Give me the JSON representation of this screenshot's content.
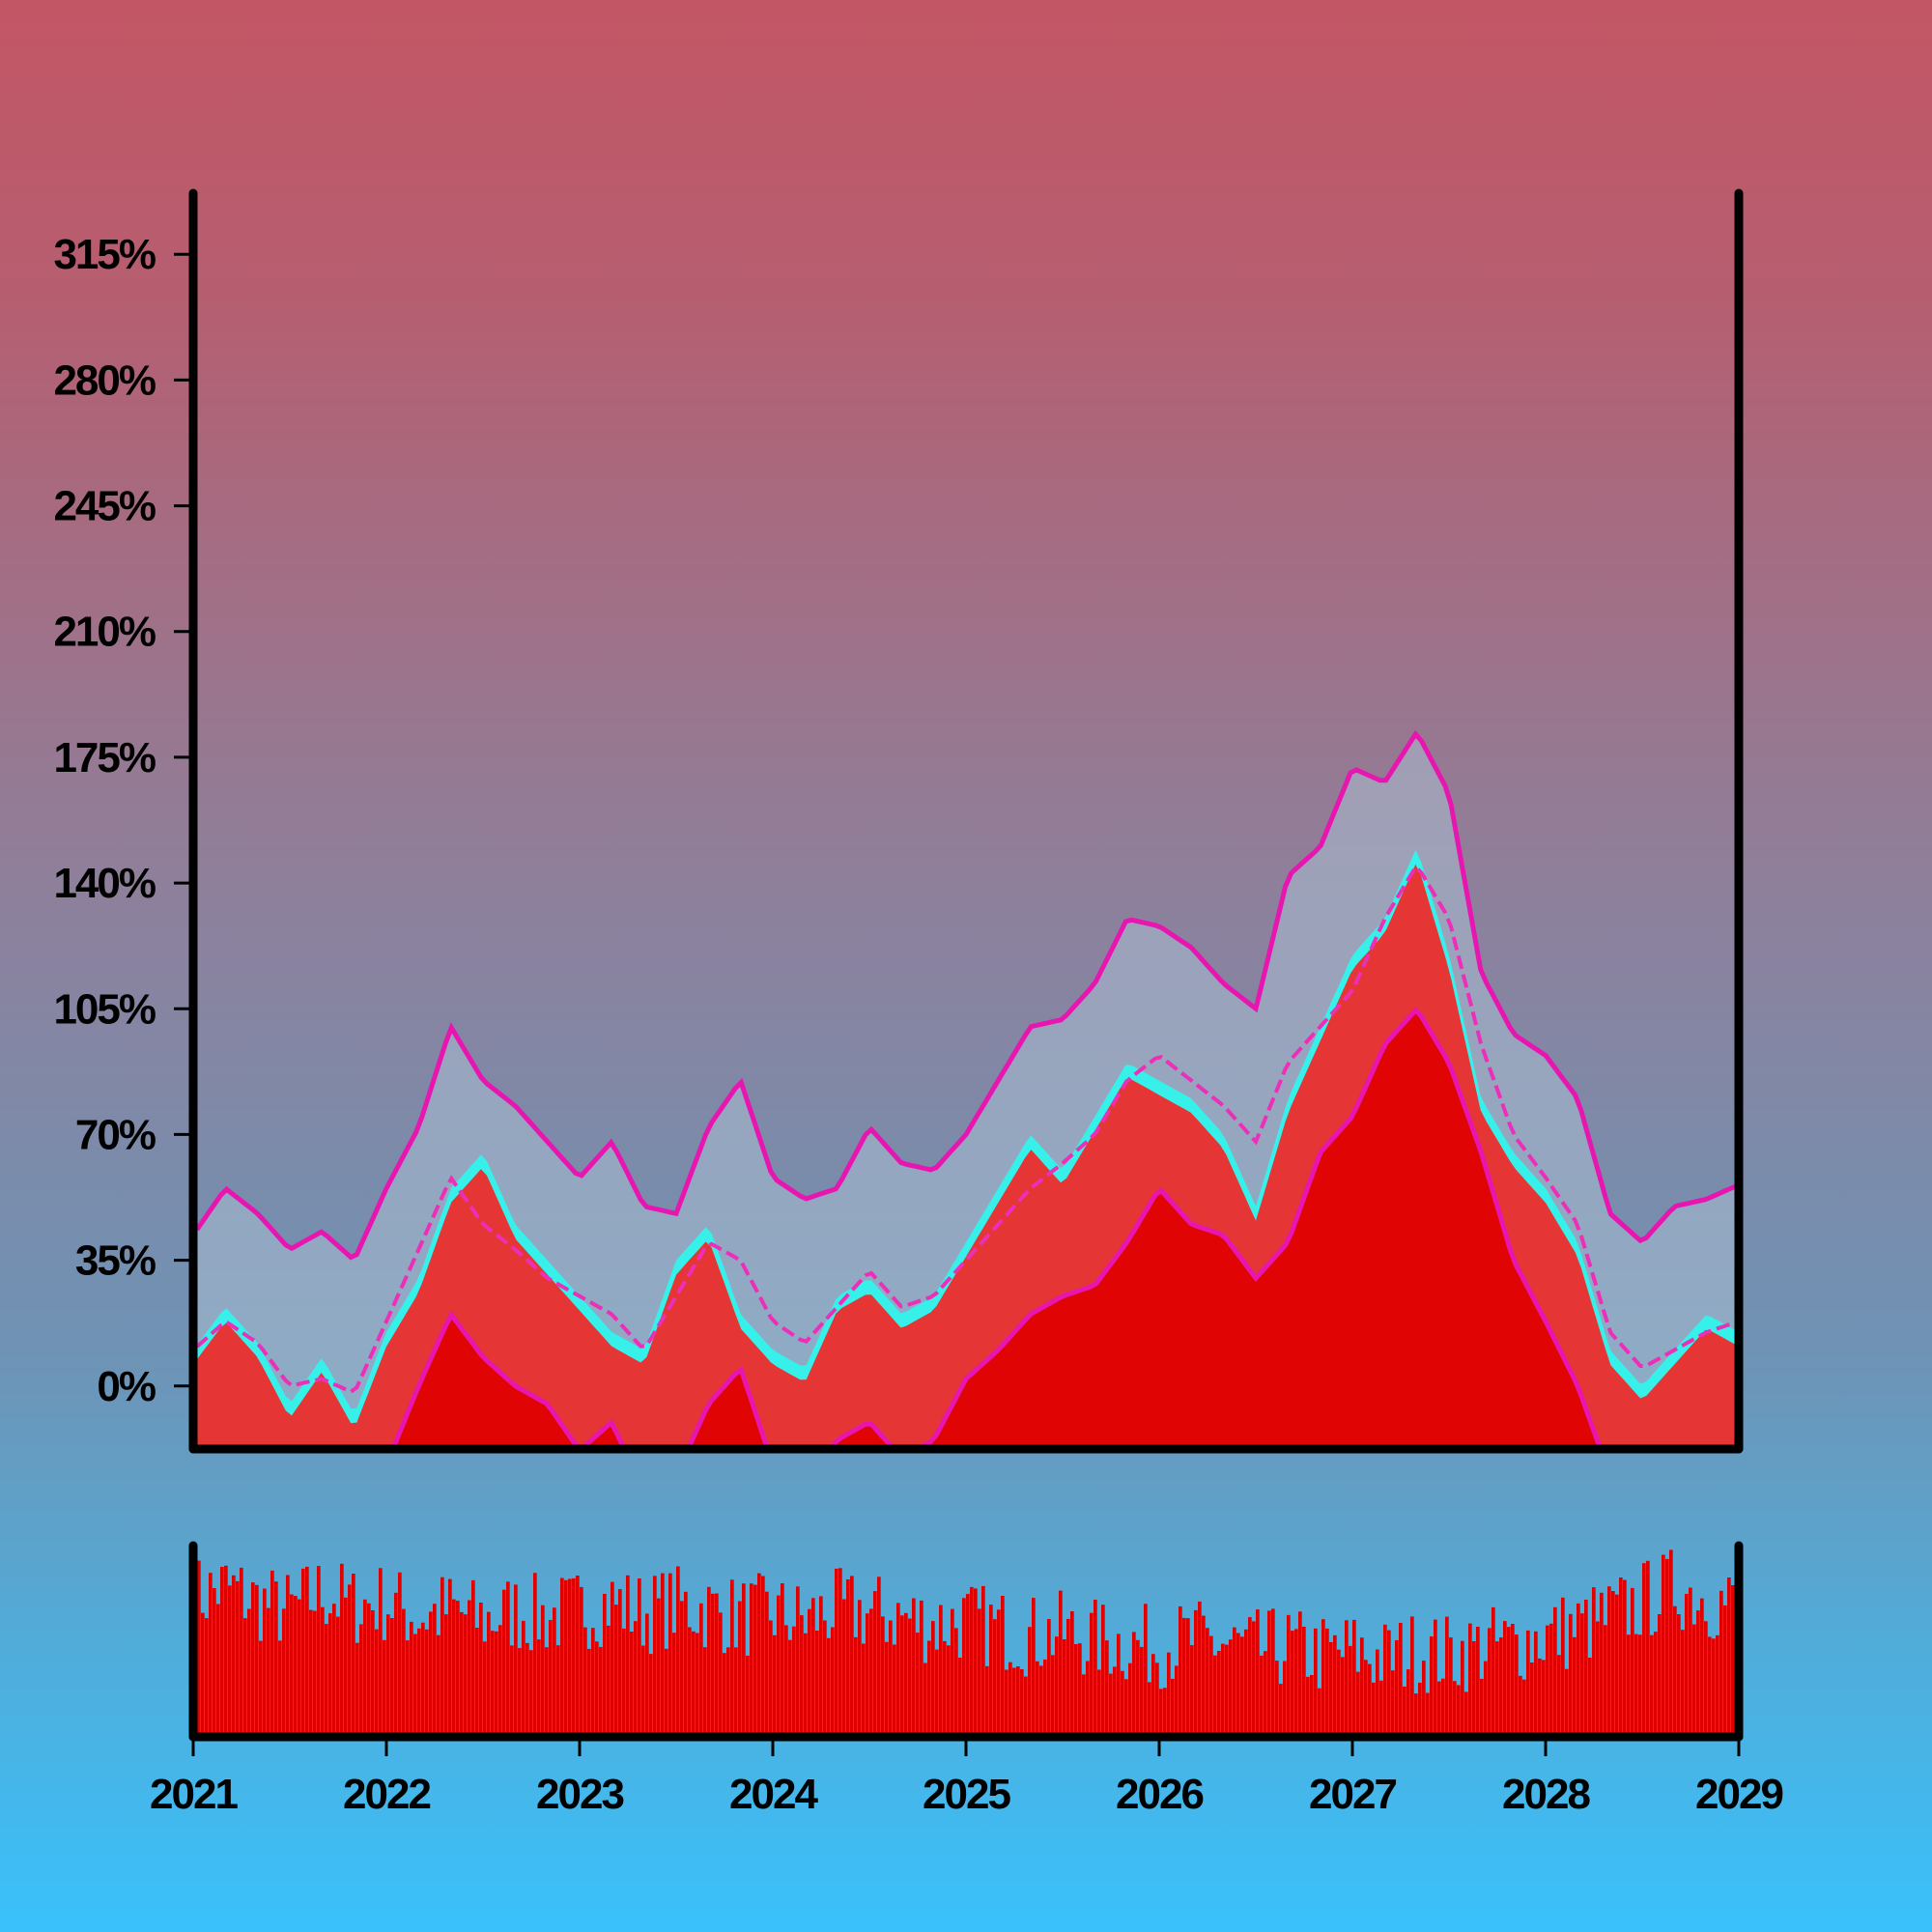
{
  "chart_data": {
    "type": "line",
    "title": "",
    "xlabel": "",
    "ylabel": "",
    "x_range": [
      "2021-01-01",
      "2029-01-01"
    ],
    "x_ticks": [
      "2021",
      "2022",
      "2023",
      "2024",
      "2025",
      "2026",
      "2027",
      "2028",
      "2029"
    ],
    "ylim": [
      -17,
      332
    ],
    "y_ticks": [
      0,
      35,
      70,
      105,
      140,
      175,
      210,
      245,
      280,
      315
    ],
    "y_tick_labels": [
      "0%",
      "35%",
      "70%",
      "105%",
      "140%",
      "175%",
      "210%",
      "245%",
      "280%",
      "315%"
    ],
    "legend": "none",
    "grid": false,
    "x": [
      "2021-01",
      "2021-03",
      "2021-05",
      "2021-07",
      "2021-09",
      "2021-11",
      "2022-01",
      "2022-03",
      "2022-05",
      "2022-07",
      "2022-09",
      "2022-11",
      "2023-01",
      "2023-03",
      "2023-05",
      "2023-07",
      "2023-09",
      "2023-11",
      "2024-01",
      "2024-03",
      "2024-05",
      "2024-07",
      "2024-09",
      "2024-11",
      "2025-01",
      "2025-03",
      "2025-05",
      "2025-07",
      "2025-09",
      "2025-11",
      "2026-01",
      "2026-03",
      "2026-05",
      "2026-07",
      "2026-09",
      "2026-11",
      "2027-01",
      "2027-03",
      "2027-05",
      "2027-07",
      "2027-09",
      "2027-11",
      "2028-01",
      "2028-03",
      "2028-05",
      "2028-07",
      "2028-09",
      "2028-11",
      "2029-01"
    ],
    "series": [
      {
        "role": "price",
        "color": "#37f0ea",
        "values": [
          10,
          22,
          12,
          -5,
          8,
          -8,
          15,
          30,
          55,
          65,
          45,
          35,
          25,
          15,
          10,
          35,
          45,
          20,
          10,
          5,
          25,
          30,
          20,
          25,
          40,
          55,
          70,
          60,
          75,
          90,
          85,
          80,
          70,
          50,
          80,
          100,
          120,
          130,
          150,
          120,
          80,
          65,
          55,
          40,
          10,
          0,
          10,
          20,
          15
        ]
      },
      {
        "role": "middle-band",
        "color": "#ec2fb8",
        "values": [
          10,
          18,
          12,
          0,
          2,
          -2,
          18,
          38,
          58,
          45,
          38,
          30,
          25,
          20,
          10,
          25,
          40,
          35,
          18,
          12,
          22,
          32,
          22,
          25,
          35,
          45,
          55,
          62,
          70,
          85,
          92,
          85,
          78,
          68,
          90,
          100,
          110,
          130,
          145,
          130,
          95,
          70,
          58,
          45,
          15,
          5,
          10,
          15,
          18
        ]
      },
      {
        "role": "upper-band",
        "color": "#e816b1",
        "values": [
          42,
          55,
          48,
          38,
          43,
          35,
          55,
          72,
          100,
          85,
          78,
          68,
          58,
          68,
          50,
          48,
          72,
          85,
          58,
          52,
          55,
          72,
          62,
          60,
          70,
          85,
          100,
          102,
          112,
          130,
          128,
          122,
          112,
          105,
          142,
          150,
          172,
          168,
          182,
          165,
          115,
          98,
          92,
          80,
          48,
          40,
          50,
          52,
          56
        ]
      },
      {
        "role": "lower-band",
        "color": "#e816b1",
        "values": [
          -20,
          -25,
          -28,
          -35,
          -40,
          -30,
          -22,
          0,
          20,
          8,
          0,
          -5,
          -18,
          -10,
          -30,
          -25,
          -5,
          5,
          -22,
          -28,
          -15,
          -10,
          -20,
          -15,
          2,
          10,
          20,
          25,
          28,
          40,
          55,
          45,
          42,
          30,
          40,
          65,
          75,
          95,
          105,
          90,
          65,
          35,
          18,
          0,
          -25,
          -40,
          -35,
          -28,
          -22
        ]
      },
      {
        "role": "volume",
        "color": "#e00000",
        "values": [
          0.72,
          0.78,
          0.7,
          0.65,
          0.75,
          0.68,
          0.7,
          0.62,
          0.66,
          0.6,
          0.65,
          0.62,
          0.66,
          0.7,
          0.64,
          0.68,
          0.66,
          0.62,
          0.64,
          0.6,
          0.66,
          0.64,
          0.62,
          0.58,
          0.6,
          0.56,
          0.52,
          0.54,
          0.5,
          0.48,
          0.46,
          0.5,
          0.48,
          0.44,
          0.46,
          0.42,
          0.44,
          0.4,
          0.44,
          0.42,
          0.46,
          0.48,
          0.52,
          0.56,
          0.62,
          0.7,
          0.78,
          0.72,
          0.68
        ]
      }
    ]
  }
}
